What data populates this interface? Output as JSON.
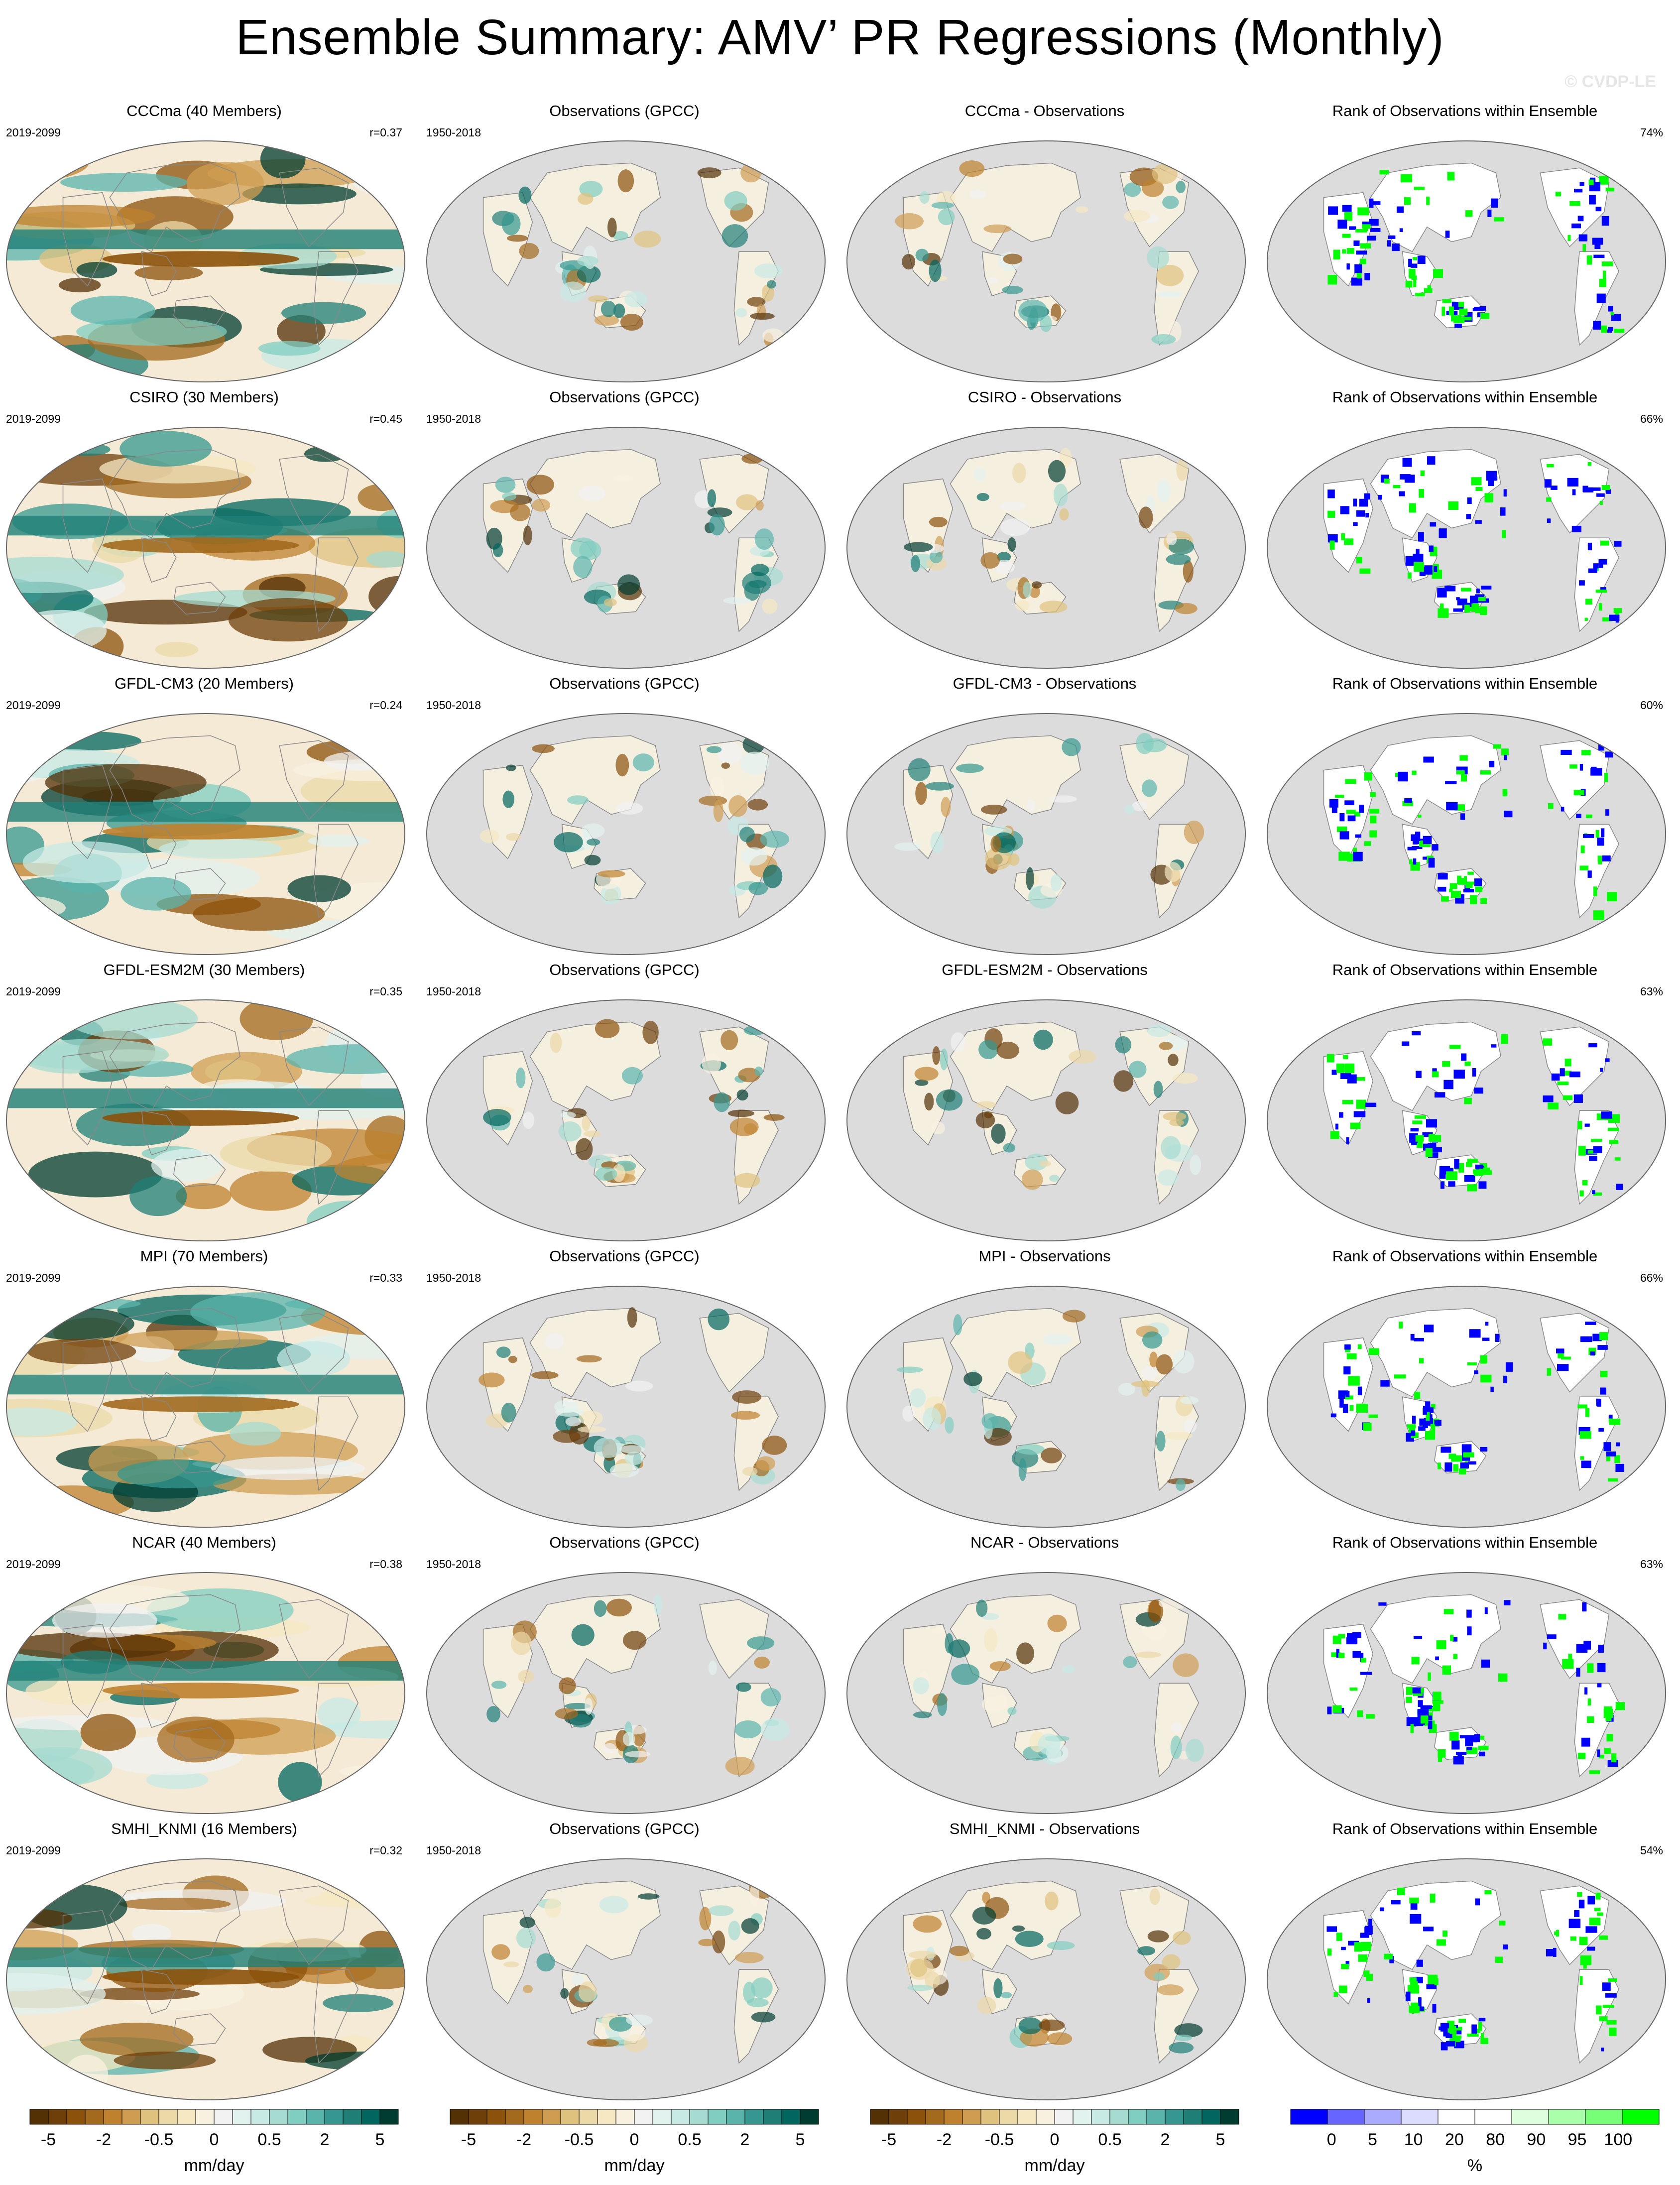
{
  "title": "Ensemble Summary: AMV’ PR Regressions (Monthly)",
  "watermark": "© CVDP-LE",
  "rows": [
    {
      "model": "CCCma (40 Members)",
      "diff": "CCCma - Observations",
      "r": "r=0.37",
      "rank": "74%"
    },
    {
      "model": "CSIRO (30 Members)",
      "diff": "CSIRO - Observations",
      "r": "r=0.45",
      "rank": "66%"
    },
    {
      "model": "GFDL-CM3 (20 Members)",
      "diff": "GFDL-CM3 - Observations",
      "r": "r=0.24",
      "rank": "60%"
    },
    {
      "model": "GFDL-ESM2M (30 Members)",
      "diff": "GFDL-ESM2M - Observations",
      "r": "r=0.35",
      "rank": "63%"
    },
    {
      "model": "MPI (70 Members)",
      "diff": "MPI - Observations",
      "r": "r=0.33",
      "rank": "66%"
    },
    {
      "model": "NCAR (40 Members)",
      "diff": "NCAR - Observations",
      "r": "r=0.38",
      "rank": "63%"
    },
    {
      "model": "SMHI_KNMI (16 Members)",
      "diff": "SMHI_KNMI - Observations",
      "r": "r=0.32",
      "rank": "54%"
    }
  ],
  "model_period": "2019-2099",
  "obs_title": "Observations (GPCC)",
  "obs_period": "1950-2018",
  "rank_title": "Rank of Observations within Ensemble",
  "colorbars": [
    {
      "unit": "mm/day",
      "labels": [
        "-5",
        "-2",
        "-0.5",
        "0",
        "0.5",
        "2",
        "5"
      ]
    },
    {
      "unit": "mm/day",
      "labels": [
        "-5",
        "-2",
        "-0.5",
        "0",
        "0.5",
        "2",
        "5"
      ]
    },
    {
      "unit": "mm/day",
      "labels": [
        "-5",
        "-2",
        "-0.5",
        "0",
        "0.5",
        "2",
        "5"
      ]
    },
    {
      "unit": "%",
      "labels": [
        "0",
        "5",
        "10",
        "20",
        "80",
        "90",
        "95",
        "100"
      ]
    }
  ],
  "colors": {
    "brown_green_scale": [
      "#543005",
      "#6f3f0a",
      "#8c510a",
      "#a36a1e",
      "#bf812d",
      "#cf9d52",
      "#dfc27d",
      "#ecd9a8",
      "#f6e8c3",
      "#f9f1e0",
      "#f2f2f2",
      "#e2f2ef",
      "#c7eae5",
      "#a6dbd2",
      "#80cdc1",
      "#5ab4ac",
      "#35978f",
      "#1f7f77",
      "#01665e",
      "#003c30"
    ],
    "rank_scale": [
      "#0000ff",
      "#6666ff",
      "#aaaaff",
      "#dcdcff",
      "#ffffff",
      "#ffffff",
      "#ddffdd",
      "#aaffaa",
      "#77ff77",
      "#00ff00"
    ],
    "land_gray": "#dcdcdc"
  },
  "chart_data": {
    "type": "heatmap",
    "panels": "7 rows x 4 columns of global map panels (model ensemble-mean, observations GPCC, model minus observations, rank of observations within ensemble)",
    "pattern_correlations": [
      0.37,
      0.45,
      0.24,
      0.35,
      0.33,
      0.38,
      0.32
    ],
    "rank_percent": [
      74,
      66,
      60,
      63,
      66,
      63,
      54
    ],
    "colorbar_mm_day": [
      -5,
      -2,
      -0.5,
      0,
      0.5,
      2,
      5
    ],
    "colorbar_percent": [
      0,
      5,
      10,
      20,
      80,
      90,
      95,
      100
    ]
  }
}
